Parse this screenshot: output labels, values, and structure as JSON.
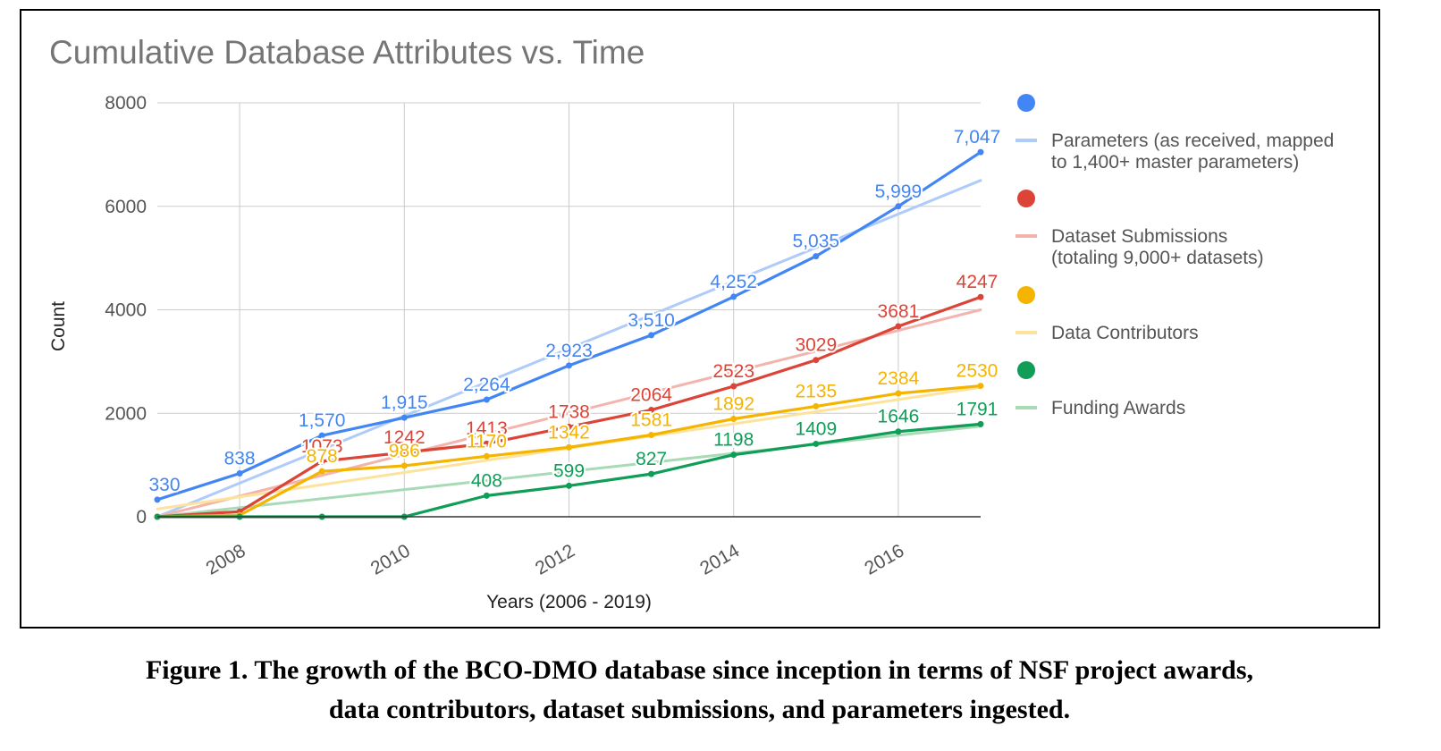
{
  "caption": {
    "line1": "Figure 1. The growth of the BCO-DMO database since inception in terms of NSF project awards,",
    "line2": "data contributors, dataset submissions, and parameters ingested."
  },
  "chart_data": {
    "type": "line",
    "title": "Cumulative Database Attributes vs. Time",
    "xlabel": "Years (2006 - 2019)",
    "ylabel": "Count",
    "xlim": [
      2007,
      2017
    ],
    "ylim": [
      0,
      8000
    ],
    "x_ticks": [
      "2008",
      "2010",
      "2012",
      "2014",
      "2016"
    ],
    "y_ticks": [
      "0",
      "2000",
      "4000",
      "6000",
      "8000"
    ],
    "grid": true,
    "legend_position": "right",
    "series": [
      {
        "name": "Parameters (as received, mapped to 1,400+ master parameters)",
        "legend_lines": [
          "Parameters (as received, mapped",
          "to 1,400+ master parameters)"
        ],
        "color": "#4285F4",
        "trend_color": "#AECBFA",
        "x": [
          2007,
          2008,
          2009,
          2010,
          2011,
          2012,
          2013,
          2014,
          2015,
          2016,
          2017
        ],
        "values": [
          330,
          838,
          1570,
          1915,
          2264,
          2923,
          3510,
          4252,
          5035,
          5999,
          7047
        ],
        "labels": [
          "330",
          "838",
          "1,570",
          "1,915",
          "2,264",
          "2,923",
          "3,510",
          "4,252",
          "5,035",
          "5,999",
          "7,047"
        ],
        "trend": [
          0,
          6500
        ]
      },
      {
        "name": "Dataset Submissions (totaling 9,000+ datasets)",
        "legend_lines": [
          "Dataset Submissions",
          "(totaling 9,000+ datasets)"
        ],
        "color": "#DB4437",
        "trend_color": "#F4B4AE",
        "x": [
          2007,
          2008,
          2009,
          2010,
          2011,
          2012,
          2013,
          2014,
          2015,
          2016,
          2017
        ],
        "values": [
          0,
          100,
          1073,
          1242,
          1413,
          1738,
          2064,
          2523,
          3029,
          3681,
          4247
        ],
        "labels": [
          "",
          "",
          "1073",
          "1242",
          "1413",
          "1738",
          "2064",
          "2523",
          "3029",
          "3681",
          "4247"
        ],
        "trend": [
          0,
          4000
        ]
      },
      {
        "name": "Data Contributors",
        "legend_lines": [
          "Data Contributors"
        ],
        "color": "#F4B400",
        "trend_color": "#FCE29B",
        "x": [
          2007,
          2008,
          2009,
          2010,
          2011,
          2012,
          2013,
          2014,
          2015,
          2016,
          2017
        ],
        "values": [
          0,
          30,
          878,
          986,
          1170,
          1342,
          1581,
          1892,
          2135,
          2384,
          2530
        ],
        "labels": [
          "",
          "",
          "878",
          "986",
          "1170",
          "1342",
          "1581",
          "1892",
          "2135",
          "2384",
          "2530"
        ],
        "trend": [
          150,
          2500
        ]
      },
      {
        "name": "Funding Awards",
        "legend_lines": [
          "Funding Awards"
        ],
        "color": "#0F9D58",
        "trend_color": "#A8DAB5",
        "x": [
          2007,
          2008,
          2009,
          2010,
          2011,
          2012,
          2013,
          2014,
          2015,
          2016,
          2017
        ],
        "values": [
          0,
          0,
          0,
          0,
          408,
          599,
          827,
          1198,
          1409,
          1646,
          1791
        ],
        "labels": [
          "",
          "",
          "",
          "",
          "408",
          "599",
          "827",
          "1198",
          "1409",
          "1646",
          "1791"
        ],
        "trend": [
          0,
          1750
        ]
      }
    ]
  }
}
